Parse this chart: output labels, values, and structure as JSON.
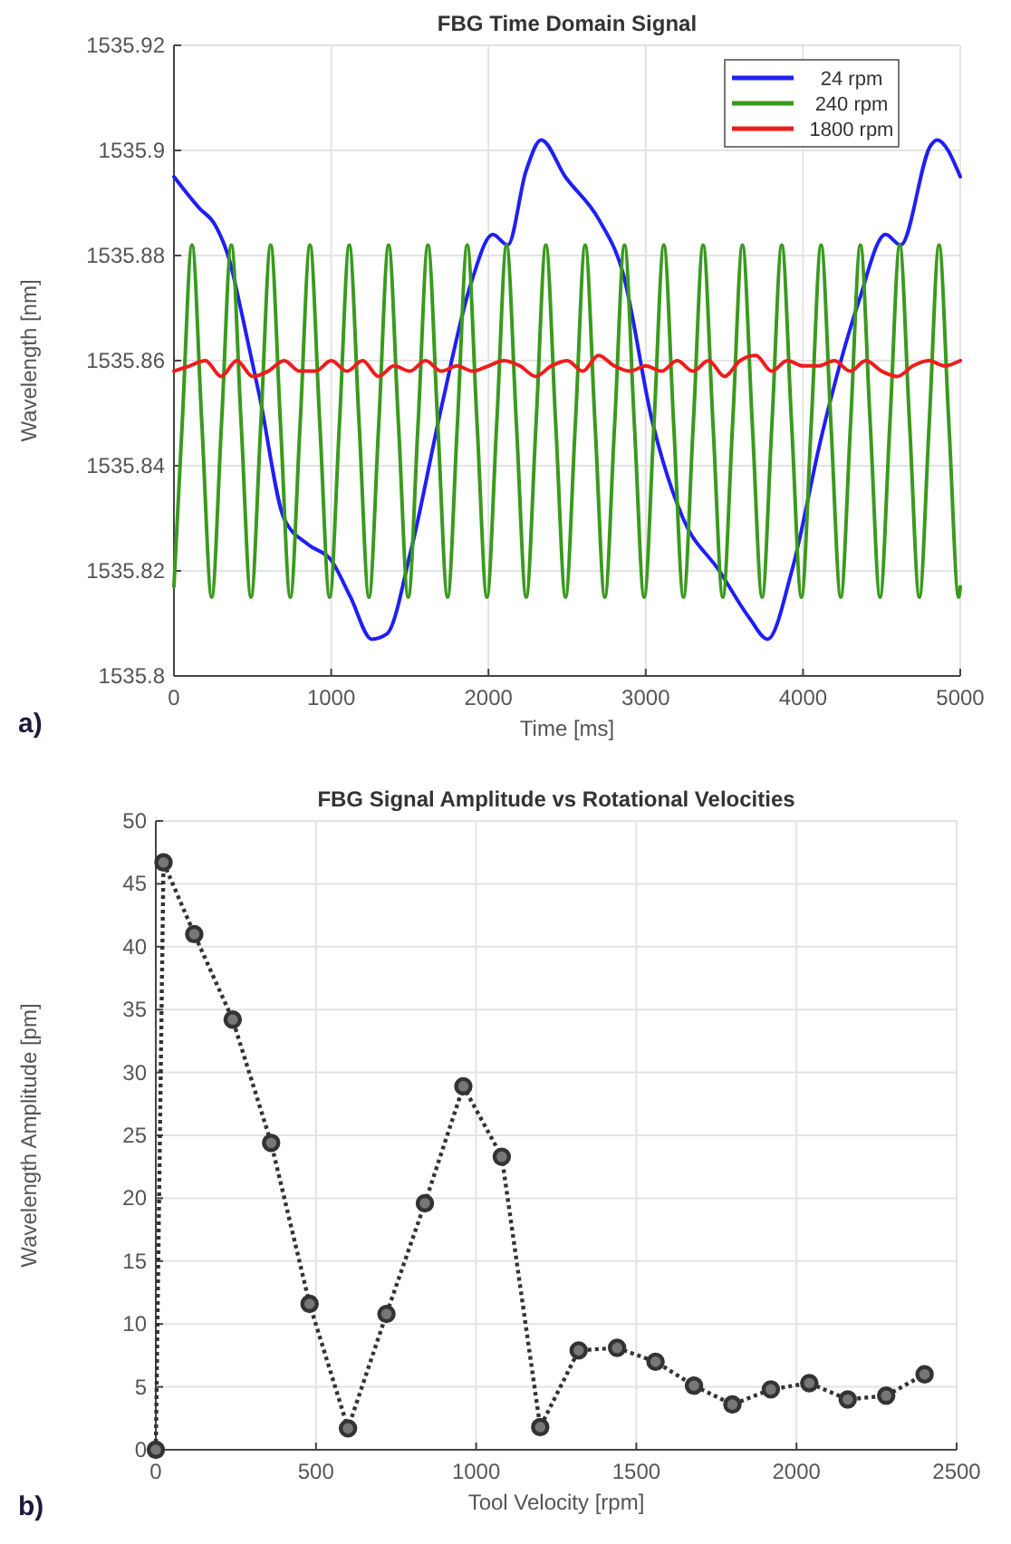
{
  "chart_data": [
    {
      "type": "line",
      "title": "FBG Time Domain Signal",
      "xlabel": "Time [ms]",
      "ylabel": "Wavelength [nm]",
      "xlim": [
        0,
        5000
      ],
      "xticks": [
        0,
        1000,
        2000,
        3000,
        4000,
        5000
      ],
      "ylim": [
        1535.8,
        1535.92
      ],
      "yticks": [
        1535.8,
        1535.82,
        1535.84,
        1535.86,
        1535.88,
        1535.9,
        1535.92
      ],
      "grid": true,
      "legend": "top right",
      "line_style": "solid",
      "annotations": [
        "a)"
      ],
      "series": [
        {
          "name": "24 rpm",
          "color": "#1f1ff5",
          "x": [
            0,
            162,
            258,
            354,
            431,
            546,
            700,
            854,
            1000,
            1123,
            1258,
            1354,
            1508,
            1700,
            1892,
            2027,
            2123,
            2238,
            2335,
            2488,
            2699,
            2852,
            3045,
            3237,
            3468,
            3660,
            3775,
            3929,
            4121,
            4352,
            4525,
            4621,
            4813,
            4852,
            5000
          ],
          "values": [
            1535.895,
            1535.889,
            1535.886,
            1535.879,
            1535.869,
            1535.853,
            1535.83,
            1535.825,
            1535.822,
            1535.815,
            1535.807,
            1535.808,
            1535.824,
            1535.851,
            1535.875,
            1535.884,
            1535.882,
            1535.896,
            1535.902,
            1535.895,
            1535.887,
            1535.877,
            1535.848,
            1535.83,
            1535.82,
            1535.811,
            1535.807,
            1535.82,
            1535.846,
            1535.871,
            1535.884,
            1535.882,
            1535.901,
            1535.902,
            1535.895
          ]
        },
        {
          "name": "240 rpm",
          "color": "#3a9a1e",
          "x": [
            0,
            52.5,
            115,
            177.5,
            240,
            302.5,
            365,
            427.5,
            490,
            552.5,
            615,
            677.5,
            740,
            802.5,
            865,
            927.5,
            990,
            1052.5,
            1115,
            1177.5,
            1240,
            1302.5,
            1365,
            1427.5,
            1490,
            1552.5,
            1615,
            1677.5,
            1740,
            1802.5,
            1865,
            1927.5,
            1990,
            2052.5,
            2115,
            2177.5,
            2240,
            2302.5,
            2365,
            2427.5,
            2490,
            2552.5,
            2615,
            2677.5,
            2740,
            2802.5,
            2865,
            2927.5,
            2990,
            3052.5,
            3115,
            3177.5,
            3240,
            3302.5,
            3365,
            3427.5,
            3490,
            3552.5,
            3615,
            3677.5,
            3740,
            3802.5,
            3865,
            3927.5,
            3990,
            4052.5,
            4115,
            4177.5,
            4240,
            4302.5,
            4365,
            4427.5,
            4490,
            4552.5,
            4615,
            4677.5,
            4740,
            4802.5,
            4865,
            4927.5,
            4990,
            5000
          ],
          "values": [
            1535.817,
            1535.848,
            1535.882,
            1535.848,
            1535.815,
            1535.848,
            1535.882,
            1535.848,
            1535.815,
            1535.848,
            1535.882,
            1535.848,
            1535.815,
            1535.848,
            1535.882,
            1535.848,
            1535.815,
            1535.848,
            1535.882,
            1535.848,
            1535.815,
            1535.848,
            1535.882,
            1535.848,
            1535.815,
            1535.848,
            1535.882,
            1535.848,
            1535.815,
            1535.848,
            1535.882,
            1535.848,
            1535.815,
            1535.848,
            1535.882,
            1535.848,
            1535.815,
            1535.848,
            1535.882,
            1535.848,
            1535.815,
            1535.848,
            1535.882,
            1535.848,
            1535.815,
            1535.848,
            1535.882,
            1535.848,
            1535.815,
            1535.848,
            1535.882,
            1535.848,
            1535.815,
            1535.848,
            1535.882,
            1535.848,
            1535.815,
            1535.848,
            1535.882,
            1535.848,
            1535.815,
            1535.848,
            1535.882,
            1535.848,
            1535.815,
            1535.848,
            1535.882,
            1535.848,
            1535.815,
            1535.848,
            1535.882,
            1535.848,
            1535.815,
            1535.848,
            1535.882,
            1535.848,
            1535.815,
            1535.848,
            1535.882,
            1535.848,
            1535.815,
            1535.817
          ]
        },
        {
          "name": "1800 rpm",
          "color": "#f01c1c",
          "x": [
            0,
            100,
            200,
            300,
            400,
            500,
            600,
            700,
            800,
            900,
            1000,
            1100,
            1200,
            1300,
            1400,
            1500,
            1600,
            1700,
            1800,
            1900,
            2000,
            2100,
            2200,
            2300,
            2400,
            2500,
            2600,
            2700,
            2800,
            2900,
            3000,
            3100,
            3200,
            3300,
            3400,
            3500,
            3600,
            3700,
            3800,
            3900,
            4000,
            4100,
            4200,
            4300,
            4400,
            4500,
            4600,
            4700,
            4800,
            4900,
            5000
          ],
          "values": [
            1535.858,
            1535.859,
            1535.86,
            1535.857,
            1535.86,
            1535.857,
            1535.858,
            1535.86,
            1535.858,
            1535.858,
            1535.86,
            1535.858,
            1535.86,
            1535.857,
            1535.859,
            1535.858,
            1535.86,
            1535.858,
            1535.859,
            1535.858,
            1535.859,
            1535.86,
            1535.859,
            1535.857,
            1535.859,
            1535.86,
            1535.858,
            1535.861,
            1535.859,
            1535.858,
            1535.859,
            1535.858,
            1535.86,
            1535.858,
            1535.86,
            1535.857,
            1535.86,
            1535.861,
            1535.858,
            1535.86,
            1535.859,
            1535.859,
            1535.86,
            1535.858,
            1535.86,
            1535.858,
            1535.857,
            1535.859,
            1535.86,
            1535.859,
            1535.86
          ]
        }
      ]
    },
    {
      "type": "line",
      "title": "FBG Signal Amplitude vs Rotational Velocities",
      "xlabel": "Tool Velocity [rpm]",
      "ylabel": "Wavelength Amplitude [pm]",
      "xlim": [
        0,
        2500
      ],
      "xticks": [
        0,
        500,
        1000,
        1500,
        2000,
        2500
      ],
      "ylim": [
        0,
        50
      ],
      "yticks": [
        0,
        5,
        10,
        15,
        20,
        25,
        30,
        35,
        40,
        45,
        50
      ],
      "grid": true,
      "marker": "circle",
      "line_style": "dotted",
      "annotations": [
        "b)"
      ],
      "series": [
        {
          "color": "#333333",
          "x": [
            0,
            24,
            120,
            240,
            360,
            480,
            600,
            720,
            840,
            960,
            1080,
            1200,
            1320,
            1440,
            1560,
            1680,
            1800,
            1920,
            2040,
            2160,
            2280,
            2400
          ],
          "values": [
            0,
            46.7,
            41,
            34.2,
            24.4,
            11.6,
            1.7,
            10.8,
            19.6,
            28.9,
            23.3,
            1.8,
            7.9,
            8.1,
            7,
            5.1,
            3.6,
            4.8,
            5.3,
            4,
            4.3,
            6
          ]
        }
      ]
    }
  ]
}
